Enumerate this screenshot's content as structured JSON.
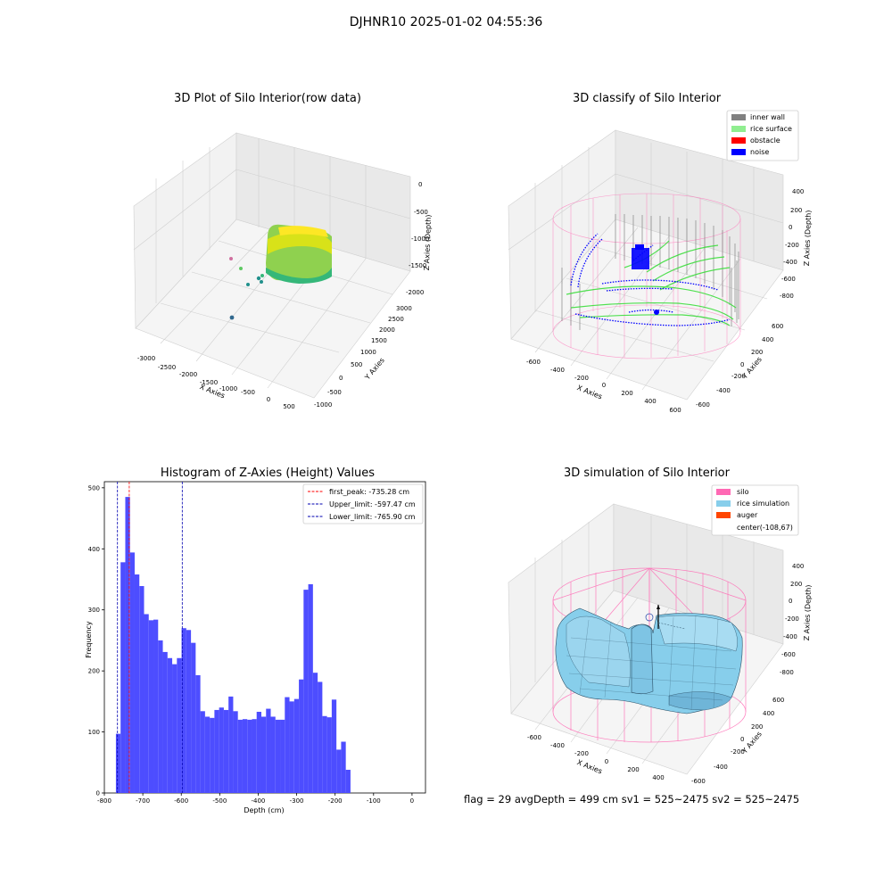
{
  "figure_title": "DJHNR10 2025-01-02 04:55:36",
  "footer_text": "flag = 29  avgDepth = 499 cm  sv1 = 525~2475  sv2 = 525~2475",
  "chart_data": [
    {
      "type": "scatter",
      "title": "3D Plot of Silo Interior(row data)",
      "xlabel": "X Axies",
      "ylabel": "Y Axies",
      "zlabel": "Z Axies (Depth)",
      "x_ticks": [
        "-3000",
        "-2500",
        "-2000",
        "-1500",
        "-1000",
        "-500",
        "0",
        "500"
      ],
      "y_ticks": [
        "-1000",
        "-500",
        "0",
        "500",
        "1000",
        "1500",
        "2000",
        "2500",
        "3000"
      ],
      "z_ticks": [
        "0",
        "-500",
        "-1000",
        "-1500",
        "-2000"
      ],
      "colormap": [
        "#440154",
        "#21918c",
        "#5ec962",
        "#fde725"
      ]
    },
    {
      "type": "scatter",
      "title": "3D classify of Silo Interior",
      "xlabel": "X Axies",
      "ylabel": "Y Axies",
      "zlabel": "Z Axies (Depth)",
      "x_ticks": [
        "-600",
        "-400",
        "-200",
        "0",
        "200",
        "400",
        "600"
      ],
      "y_ticks": [
        "-600",
        "-400",
        "-200",
        "0",
        "200",
        "400",
        "600"
      ],
      "z_ticks": [
        "400",
        "200",
        "0",
        "-200",
        "-400",
        "-600",
        "-800"
      ],
      "legend": [
        {
          "label": "inner wall",
          "color": "#808080"
        },
        {
          "label": "rice surface",
          "color": "#90ee90"
        },
        {
          "label": "obstacle",
          "color": "#ff0000"
        },
        {
          "label": "noise",
          "color": "#0000ff"
        }
      ],
      "legend_position": "top-right",
      "silo_wire_color": "#ff69b4"
    },
    {
      "type": "bar",
      "title": "Histogram of Z-Axies (Height) Values",
      "xlabel": "Depth (cm)",
      "ylabel": "Frequency",
      "xlim": [
        -800,
        35
      ],
      "ylim": [
        0,
        510
      ],
      "x_ticks": [
        -800,
        -700,
        -600,
        -500,
        -400,
        -300,
        -200,
        -100,
        0
      ],
      "y_ticks": [
        0,
        100,
        200,
        300,
        400,
        500
      ],
      "bar_color": "#4d4dff",
      "bin_start": -770,
      "bin_width": 12.2,
      "values": [
        97,
        378,
        485,
        394,
        358,
        339,
        293,
        283,
        284,
        250,
        231,
        221,
        211,
        221,
        270,
        267,
        246,
        193,
        134,
        125,
        123,
        136,
        140,
        136,
        158,
        134,
        120,
        121,
        120,
        121,
        133,
        125,
        138,
        125,
        120,
        120,
        157,
        150,
        154,
        186,
        333,
        342,
        197,
        182,
        126,
        124,
        153,
        71,
        84,
        38
      ],
      "lines": [
        {
          "label": "first_peak: -735.28 cm",
          "value": -735.28,
          "color": "#ff0000"
        },
        {
          "label": "Upper_limit: -597.47 cm",
          "value": -597.47,
          "color": "#0000b0"
        },
        {
          "label": "Lower_limit: -765.90 cm",
          "value": -765.9,
          "color": "#0000b0"
        }
      ],
      "legend_position": "top-right"
    },
    {
      "type": "surface",
      "title": "3D simulation of Silo Interior",
      "xlabel": "X Axies",
      "ylabel": "Y Axies",
      "zlabel": "Z Axies (Depth)",
      "x_ticks": [
        "-600",
        "-400",
        "-200",
        "0",
        "200",
        "400"
      ],
      "y_ticks": [
        "-600",
        "-400",
        "-200",
        "0",
        "200",
        "400",
        "600"
      ],
      "z_ticks": [
        "400",
        "200",
        "0",
        "-200",
        "-400",
        "-600",
        "-800"
      ],
      "legend": [
        {
          "label": "silo",
          "color": "#ff69b4"
        },
        {
          "label": "rice simulation",
          "color": "#87ceeb"
        },
        {
          "label": "auger",
          "color": "#ff4500"
        },
        {
          "label": "center(-108,67)",
          "color": ""
        }
      ],
      "legend_position": "top-right"
    }
  ]
}
